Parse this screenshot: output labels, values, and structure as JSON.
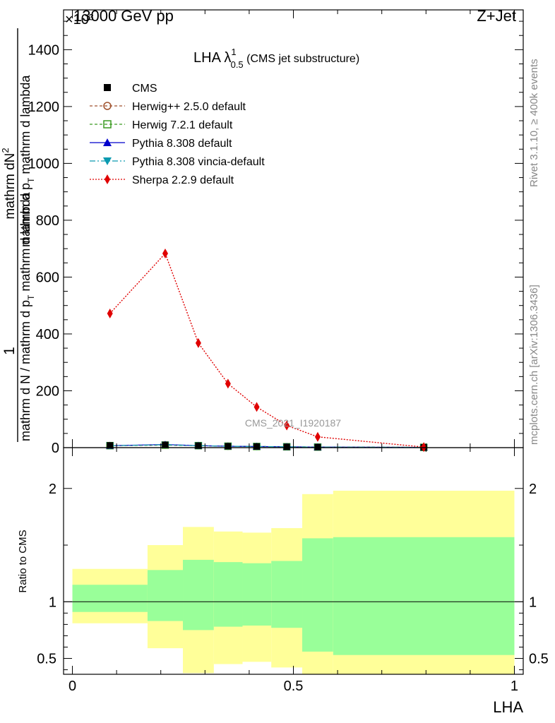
{
  "header": {
    "left": "13000 GeV pp",
    "right": "Z+Jet",
    "exponent": "×10³"
  },
  "plot_title": {
    "main": "LHA λ",
    "sup": "1",
    "sub": "0.5",
    "suffix": " (CMS jet substructure)"
  },
  "side": {
    "rivet": "Rivet 3.1.10, ≥ 400k events",
    "mcplots": "mcplots.cern.ch [arXiv:1306.3436]"
  },
  "watermark": "CMS_2021_I1920187",
  "ylabel_main": {
    "one": "1",
    "numerator": "mathrm d²N",
    "denominator": "mathrm d N / mathrm d p",
    "num_full": "mathrm dN",
    "den_sub": "T",
    "den_tail": " mathrm d lambda",
    "num_line2": "mathrm d p",
    "num_line2_sub": "T",
    "num_line2_tail": " mathrm d lambda"
  },
  "ylabel_ratio": "Ratio to CMS",
  "xlabel": "LHA",
  "colors": {
    "cms": "#000000",
    "herwigpp": "#a0522d",
    "herwig7": "#3a9a20",
    "pythia": "#0000cc",
    "vincia": "#0a9ab0",
    "sherpa": "#e00000",
    "band_outer": "#ffff99",
    "band_inner": "#99ff99"
  },
  "legend": [
    {
      "label": "CMS",
      "key": "cms"
    },
    {
      "label": "Herwig++ 2.5.0 default",
      "key": "herwigpp"
    },
    {
      "label": "Herwig 7.2.1 default",
      "key": "herwig7"
    },
    {
      "label": "Pythia 8.308 default",
      "key": "pythia"
    },
    {
      "label": "Pythia 8.308 vincia-default",
      "key": "vincia"
    },
    {
      "label": "Sherpa 2.2.9 default",
      "key": "sherpa"
    }
  ],
  "chart_data": {
    "type": "line",
    "x_range": [
      -0.02,
      1.02
    ],
    "main": {
      "y_range": [
        0,
        1540
      ],
      "y_ticks": [
        0,
        200,
        400,
        600,
        800,
        1000,
        1200,
        1400
      ],
      "y_tick_labels": [
        "0",
        "200",
        "400",
        "600",
        "800",
        "1000",
        "1200",
        "1400"
      ],
      "bin_edges": [
        0.0,
        0.17,
        0.25,
        0.32,
        0.385,
        0.45,
        0.52,
        0.59,
        1.0
      ],
      "x_points": [
        0.085,
        0.21,
        0.285,
        0.352,
        0.417,
        0.485,
        0.555,
        0.795
      ],
      "series": [
        {
          "key": "cms",
          "values": [
            8,
            10,
            7,
            5,
            4,
            3,
            2,
            1
          ]
        },
        {
          "key": "herwigpp",
          "values": [
            7,
            9,
            7,
            5,
            4,
            3,
            2,
            1
          ]
        },
        {
          "key": "herwig7",
          "values": [
            7,
            9,
            7,
            5,
            4,
            3,
            2,
            1
          ]
        },
        {
          "key": "pythia",
          "values": [
            7,
            11,
            7,
            5,
            4,
            3,
            2,
            1
          ]
        },
        {
          "key": "vincia",
          "values": [
            7,
            10,
            7,
            5,
            4,
            3,
            2,
            1
          ]
        },
        {
          "key": "sherpa",
          "values": [
            472,
            683,
            368,
            225,
            143,
            78,
            38,
            2
          ]
        }
      ]
    },
    "ratio": {
      "y_range": [
        0.36,
        2.36
      ],
      "y_ticks": [
        0.5,
        1,
        2
      ],
      "y_tick_labels": [
        "0.5",
        "1",
        "2"
      ],
      "reference": 1.0,
      "band_edges": [
        0.0,
        0.17,
        0.25,
        0.32,
        0.385,
        0.45,
        0.52,
        0.59,
        1.0
      ],
      "outer_low": [
        0.81,
        0.59,
        0.37,
        0.45,
        0.47,
        0.42,
        0.35,
        0.3
      ],
      "outer_high": [
        1.29,
        1.5,
        1.66,
        1.62,
        1.61,
        1.65,
        1.95,
        1.98
      ],
      "inner_low": [
        0.91,
        0.83,
        0.75,
        0.78,
        0.79,
        0.77,
        0.56,
        0.53
      ],
      "inner_high": [
        1.15,
        1.28,
        1.37,
        1.35,
        1.34,
        1.36,
        1.56,
        1.57
      ]
    },
    "x_ticks": [
      0,
      0.5,
      1
    ],
    "x_tick_labels": [
      "0",
      "0.5",
      "1"
    ]
  }
}
